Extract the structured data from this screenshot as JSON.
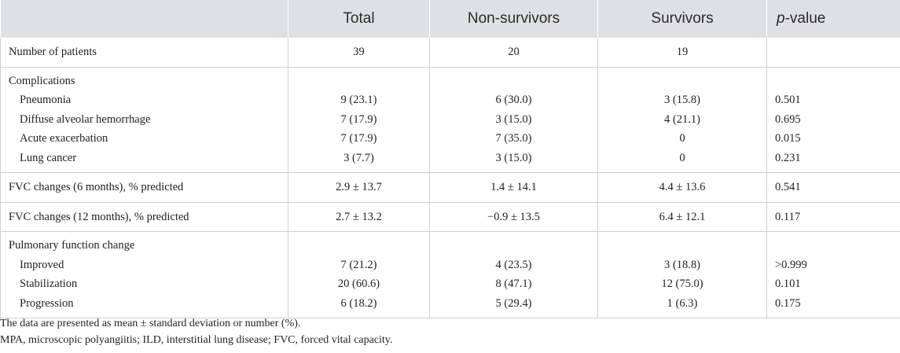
{
  "headers": [
    "",
    "Total",
    "Non-survivors",
    "Survivors"
  ],
  "header_pvalue": {
    "italic": "p",
    "rest": "-value"
  },
  "rows": {
    "patients": {
      "label": "Number of patients",
      "total": "39",
      "non": "20",
      "surv": "19",
      "p": ""
    },
    "complications": {
      "label": "Complications"
    },
    "pneumonia": {
      "label": "Pneumonia",
      "total": "9 (23.1)",
      "non": "6 (30.0)",
      "surv": "3 (15.8)",
      "p": "0.501"
    },
    "dah": {
      "label": "Diffuse alveolar hemorrhage",
      "total": "7 (17.9)",
      "non": "3 (15.0)",
      "surv": "4 (21.1)",
      "p": "0.695"
    },
    "ae": {
      "label": "Acute exacerbation",
      "total": "7 (17.9)",
      "non": "7 (35.0)",
      "surv": "0",
      "p": "0.015"
    },
    "lc": {
      "label": "Lung cancer",
      "total": "3 (7.7)",
      "non": "3 (15.0)",
      "surv": "0",
      "p": "0.231"
    },
    "fvc6": {
      "label": "FVC changes (6 months), % predicted",
      "total": "2.9 ± 13.7",
      "non": "1.4 ± 14.1",
      "surv": "4.4 ± 13.6",
      "p": "0.541"
    },
    "fvc12": {
      "label": "FVC changes (12 months), % predicted",
      "total": "2.7 ± 13.2",
      "non": "−0.9 ± 13.5",
      "surv": "6.4 ± 12.1",
      "p": "0.117"
    },
    "pfc": {
      "label": "Pulmonary function change"
    },
    "improved": {
      "label": "Improved",
      "total": "7 (21.2)",
      "non": "4 (23.5)",
      "surv": "3 (18.8)",
      "p": ">0.999"
    },
    "stab": {
      "label": "Stabilization",
      "total": "20 (60.6)",
      "non": "8 (47.1)",
      "surv": "12 (75.0)",
      "p": "0.101"
    },
    "prog": {
      "label": "Progression",
      "total": "6 (18.2)",
      "non": "5 (29.4)",
      "surv": "1 (6.3)",
      "p": "0.175"
    }
  },
  "footnotes": [
    "The data are presented as mean ± standard deviation or number (%).",
    "MPA, microscopic polyangiitis; ILD, interstitial lung disease; FVC, forced vital capacity."
  ]
}
